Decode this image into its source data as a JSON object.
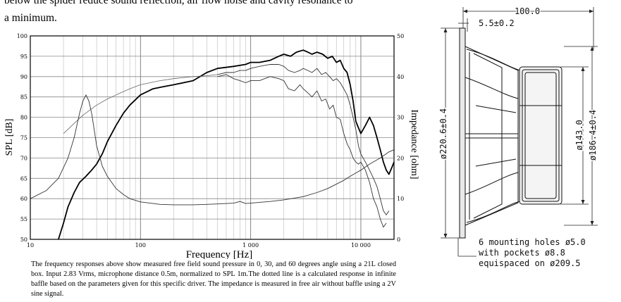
{
  "intro": {
    "line1": "below the spider reduce sound reflection, air  flow noise and cavity resonance to",
    "line2": "a minimum."
  },
  "chart_data": {
    "type": "line",
    "title": "",
    "xlabel": "Frequency [Hz]",
    "ylabel": "SPL [dB]",
    "y2label": "Impedance [ohm]",
    "xscale": "log",
    "xlim": [
      10,
      20000
    ],
    "ylim": [
      50,
      100
    ],
    "y2lim": [
      0,
      50
    ],
    "grid": true,
    "x_ticks": [
      "10",
      "100",
      "1 000",
      "10 000"
    ],
    "y_ticks": [
      "50",
      "55",
      "60",
      "65",
      "70",
      "75",
      "80",
      "85",
      "90",
      "95",
      "100"
    ],
    "y2_ticks": [
      "0",
      "10",
      "20",
      "30",
      "40",
      "50"
    ],
    "series": [
      {
        "style": "bold",
        "axis": "left",
        "x": [
          18,
          20,
          22,
          25,
          28,
          32,
          36,
          40,
          45,
          50,
          60,
          70,
          80,
          100,
          130,
          160,
          200,
          300,
          400,
          500,
          700,
          900,
          1000,
          1200,
          1500,
          1800,
          2000,
          2300,
          2600,
          3000,
          3300,
          3600,
          4000,
          4500,
          5000,
          5500,
          6000,
          6500,
          7000,
          7500,
          8000,
          8500,
          9000,
          10000,
          11000,
          12000,
          13000,
          14000,
          15000,
          16000,
          17000,
          18000,
          19000,
          20000
        ],
        "y": [
          50,
          54,
          58,
          61.5,
          64,
          65.5,
          67,
          68.5,
          71,
          74,
          78,
          81,
          83,
          85.5,
          87,
          87.5,
          88,
          89,
          91,
          92,
          92.5,
          93,
          93.5,
          93.5,
          94,
          95,
          95.5,
          95,
          96,
          96.5,
          96,
          95.5,
          96,
          95.5,
          94.5,
          95,
          93.5,
          94,
          92,
          91,
          88,
          84,
          79,
          76,
          78,
          80,
          78,
          75,
          72,
          69,
          67,
          66,
          67.5,
          69
        ]
      },
      {
        "style": "thin",
        "axis": "left",
        "x": [
          500,
          600,
          700,
          800,
          900,
          1000,
          1200,
          1500,
          1800,
          2000,
          2200,
          2500,
          2800,
          3000,
          3300,
          3600,
          4000,
          4400,
          4800,
          5200,
          5600,
          6000,
          6500,
          7000,
          7500,
          8000,
          8500,
          9000,
          9500,
          10000,
          11000,
          12000,
          13000,
          14000,
          15000,
          16000,
          17000,
          18000
        ],
        "y": [
          90.5,
          91,
          91,
          91.5,
          91.5,
          92,
          92.5,
          93,
          93,
          92.5,
          91.5,
          91,
          91.5,
          92,
          91.5,
          91,
          92,
          90.5,
          91,
          90,
          89,
          89.5,
          88.5,
          87,
          85.5,
          83,
          80,
          77,
          73,
          71,
          69,
          67,
          65,
          63,
          60,
          57,
          56,
          57
        ]
      },
      {
        "style": "thin",
        "axis": "left",
        "x": [
          500,
          600,
          700,
          800,
          900,
          1000,
          1200,
          1500,
          1800,
          2000,
          2200,
          2500,
          2800,
          3000,
          3300,
          3600,
          4000,
          4400,
          4800,
          5200,
          5600,
          6000,
          6500,
          7000,
          7500,
          8000,
          8500,
          9000,
          9500,
          10000,
          11000,
          12000,
          13000,
          14000,
          15000,
          16000,
          17000
        ],
        "y": [
          90,
          90.5,
          89.5,
          89,
          88.5,
          89,
          89,
          90,
          89.5,
          89,
          87,
          86.5,
          88,
          87,
          86,
          85,
          86.5,
          84,
          84.5,
          82,
          83,
          80,
          79.5,
          76,
          73.5,
          72,
          70,
          69,
          68.5,
          69,
          67,
          64,
          60,
          58,
          55,
          53,
          54
        ]
      },
      {
        "style": "dotted",
        "axis": "left",
        "x": [
          20,
          25,
          30,
          40,
          50,
          60,
          80,
          100,
          150,
          200,
          300,
          400,
          500
        ],
        "y": [
          76,
          78.5,
          80.5,
          83,
          84.5,
          85.5,
          87,
          88,
          89,
          89.5,
          90,
          90.2,
          90.5
        ]
      },
      {
        "style": "thin",
        "axis": "right",
        "x": [
          10,
          14,
          18,
          22,
          25,
          28,
          30,
          32,
          34,
          36,
          38,
          40,
          45,
          50,
          60,
          70,
          80,
          100,
          130,
          150,
          200,
          300,
          400,
          500,
          700,
          800,
          900,
          1000,
          1200,
          1500,
          2000,
          3000,
          4000,
          5000,
          7000,
          8000,
          10000,
          12000,
          15000,
          18000,
          20000
        ],
        "y": [
          10,
          12,
          15,
          20,
          25,
          31,
          34,
          35.5,
          34,
          31,
          27,
          23,
          18,
          15.5,
          12.5,
          11,
          10,
          9.2,
          8.8,
          8.6,
          8.5,
          8.5,
          8.6,
          8.7,
          8.9,
          9.3,
          8.8,
          8.9,
          9.1,
          9.3,
          9.7,
          10.5,
          11.5,
          12.5,
          14.5,
          15.5,
          17,
          18.5,
          20,
          21.5,
          22
        ]
      }
    ]
  },
  "caption": "The frequency responses above show measured free field sound pressure in 0, 30, and 60 degrees angle using a 21L closed box. Input 2.83 Vrms, microphone distance 0.5m, normalized to SPL 1m.The dotted line is a calculated response in infinite baffle based on the parameters given for this specific driver. The impedance is measured in free air without baffle using a 2V sine signal.",
  "drawing": {
    "dim_total_depth": "100.0",
    "dim_flange": "5.5±0.2",
    "dim_outer_dia": "ø220.6±0.4",
    "dim_magnet_dia": "ø143.0",
    "dim_cutout_dia": "ø186.4±0.4",
    "note_line1": "6 mounting holes ø5.0",
    "note_line2": "with pockets ø8.8",
    "note_line3": "equispaced on ø209.5"
  }
}
